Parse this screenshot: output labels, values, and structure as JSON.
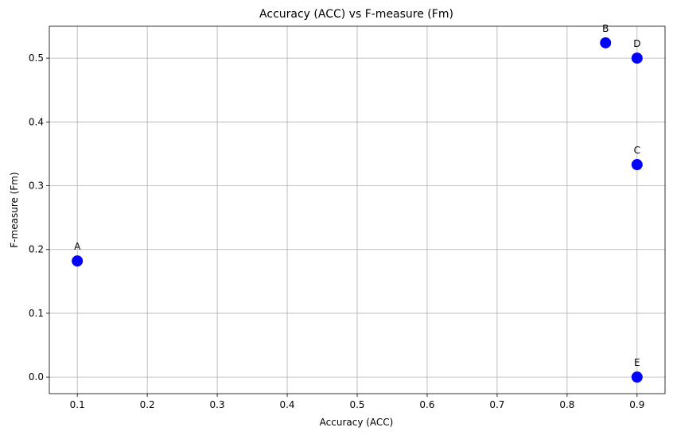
{
  "chart_data": {
    "type": "scatter",
    "title": "Accuracy (ACC) vs F-measure (Fm)",
    "xlabel": "Accuracy (ACC)",
    "ylabel": "F-measure (Fm)",
    "xlim": [
      0.06,
      0.94
    ],
    "ylim": [
      -0.026,
      0.55
    ],
    "xticks": [
      0.1,
      0.2,
      0.3,
      0.4,
      0.5,
      0.6,
      0.7,
      0.8,
      0.9
    ],
    "xtick_labels": [
      "0.1",
      "0.2",
      "0.3",
      "0.4",
      "0.5",
      "0.6",
      "0.7",
      "0.8",
      "0.9"
    ],
    "yticks": [
      0.0,
      0.1,
      0.2,
      0.3,
      0.4,
      0.5
    ],
    "ytick_labels": [
      "0.0",
      "0.1",
      "0.2",
      "0.3",
      "0.4",
      "0.5"
    ],
    "grid": true,
    "marker_color": "#0000ff",
    "points": [
      {
        "label": "A",
        "x": 0.1,
        "y": 0.182
      },
      {
        "label": "B",
        "x": 0.855,
        "y": 0.524
      },
      {
        "label": "C",
        "x": 0.9,
        "y": 0.333
      },
      {
        "label": "D",
        "x": 0.9,
        "y": 0.5
      },
      {
        "label": "E",
        "x": 0.9,
        "y": 0.0
      }
    ]
  }
}
